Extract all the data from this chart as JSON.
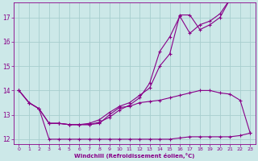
{
  "bg_color": "#cce8e8",
  "grid_color": "#a8cece",
  "line_color": "#880088",
  "marker_color": "#880088",
  "xlabel": "Windchill (Refroidissement éolien,°C)",
  "xlabel_color": "#880088",
  "tick_color": "#880088",
  "xlim": [
    -0.5,
    23.5
  ],
  "ylim": [
    11.8,
    17.6
  ],
  "yticks": [
    12,
    13,
    14,
    15,
    16,
    17
  ],
  "xticks": [
    0,
    1,
    2,
    3,
    4,
    5,
    6,
    7,
    8,
    9,
    10,
    11,
    12,
    13,
    14,
    15,
    16,
    17,
    18,
    19,
    20,
    21,
    22,
    23
  ],
  "series": [
    {
      "x": [
        0,
        1,
        2,
        3,
        4,
        5,
        6,
        7,
        8,
        9,
        10,
        11,
        12,
        13,
        14,
        15,
        16,
        17,
        18,
        19,
        20,
        21,
        22,
        23
      ],
      "y": [
        14.0,
        13.5,
        13.25,
        12.65,
        12.65,
        12.6,
        12.6,
        12.6,
        12.65,
        13.0,
        13.3,
        13.35,
        13.5,
        13.55,
        13.6,
        13.7,
        13.8,
        13.9,
        14.0,
        14.0,
        13.9,
        13.85,
        13.6,
        12.25
      ]
    },
    {
      "x": [
        0,
        1,
        2,
        3,
        4,
        5,
        6,
        7,
        8,
        9,
        10,
        11,
        12,
        13,
        14,
        15,
        16,
        17,
        18,
        19,
        20,
        21,
        22,
        23
      ],
      "y": [
        14.0,
        13.5,
        13.25,
        12.0,
        12.0,
        12.0,
        12.0,
        12.0,
        12.0,
        12.0,
        12.0,
        12.0,
        12.0,
        12.0,
        12.0,
        12.0,
        12.05,
        12.1,
        12.1,
        12.1,
        12.1,
        12.1,
        12.15,
        12.25
      ]
    },
    {
      "x": [
        0,
        1,
        2,
        3,
        4,
        5,
        6,
        7,
        8,
        9,
        10,
        11,
        12,
        13,
        14,
        15,
        16,
        17,
        18,
        19,
        20,
        21
      ],
      "y": [
        14.0,
        13.5,
        13.25,
        12.65,
        12.65,
        12.6,
        12.6,
        12.65,
        12.8,
        13.1,
        13.35,
        13.5,
        13.8,
        14.1,
        15.0,
        15.5,
        17.1,
        17.1,
        16.5,
        16.7,
        17.0,
        17.75
      ]
    },
    {
      "x": [
        3,
        4,
        5,
        6,
        7,
        8,
        9,
        10,
        11,
        12,
        13,
        14,
        15,
        16,
        17,
        18,
        19,
        20,
        21
      ],
      "y": [
        12.65,
        12.65,
        12.6,
        12.6,
        12.6,
        12.7,
        12.9,
        13.2,
        13.4,
        13.7,
        14.3,
        15.6,
        16.2,
        17.05,
        16.35,
        16.7,
        16.85,
        17.15,
        17.75
      ]
    }
  ]
}
